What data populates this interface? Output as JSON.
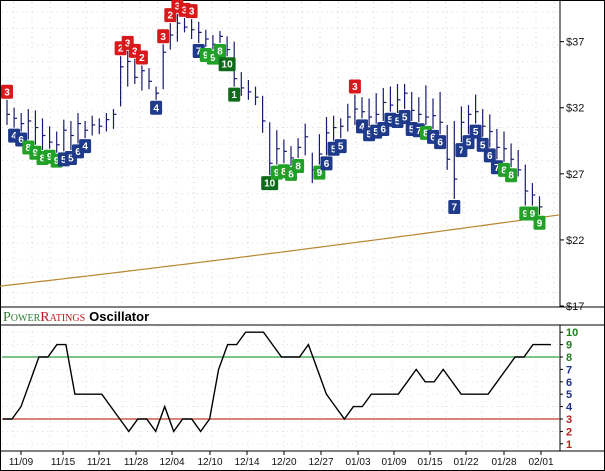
{
  "brand": {
    "power_initial": "P",
    "power_rest": "OWER",
    "ratings_initial": "R",
    "ratings_rest": "ATINGS",
    "oscillator_label": "Oscillator",
    "colors": {
      "power": "#2e7d32",
      "ratings": "#b71c1c"
    }
  },
  "chart_data": [
    {
      "type": "ohlc",
      "name": "price",
      "y_ticks": [
        "$37",
        "$32",
        "$27",
        "$22",
        "$17"
      ],
      "y_tick_values": [
        37,
        32,
        27,
        22,
        17
      ],
      "ylim": [
        17,
        40
      ],
      "grid": "dotted",
      "x_ticks": [
        "11/09",
        "11/15",
        "11/21",
        "11/28",
        "12/04",
        "12/10",
        "12/14",
        "12/20",
        "12/27",
        "01/03",
        "01/09",
        "01/15",
        "01/22",
        "01/28",
        "02/01"
      ],
      "bars": [
        {
          "hi": 32.6,
          "lo": 30.7,
          "cl": 31.5
        },
        {
          "hi": 32.0,
          "lo": 30.5,
          "cl": 31.2
        },
        {
          "hi": 31.6,
          "lo": 30.2,
          "cl": 30.8
        },
        {
          "hi": 31.9,
          "lo": 29.6,
          "cl": 31.0
        },
        {
          "hi": 31.8,
          "lo": 29.2,
          "cl": 30.5
        },
        {
          "hi": 31.2,
          "lo": 28.8,
          "cl": 29.9
        },
        {
          "hi": 30.6,
          "lo": 28.9,
          "cl": 29.4
        },
        {
          "hi": 30.2,
          "lo": 28.6,
          "cl": 29.2
        },
        {
          "hi": 31.1,
          "lo": 28.7,
          "cl": 30.3
        },
        {
          "hi": 31.0,
          "lo": 28.8,
          "cl": 29.9
        },
        {
          "hi": 31.6,
          "lo": 29.3,
          "cl": 30.8
        },
        {
          "hi": 31.0,
          "lo": 29.7,
          "cl": 30.3
        },
        {
          "hi": 31.4,
          "lo": 29.9,
          "cl": 30.7
        },
        {
          "hi": 31.2,
          "lo": 30.0,
          "cl": 30.6
        },
        {
          "hi": 31.6,
          "lo": 30.2,
          "cl": 31.1
        },
        {
          "hi": 31.9,
          "lo": 30.4,
          "cl": 31.5
        },
        {
          "hi": 35.9,
          "lo": 32.1,
          "cl": 35.1
        },
        {
          "hi": 36.3,
          "lo": 33.6,
          "cl": 35.5
        },
        {
          "hi": 35.7,
          "lo": 33.8,
          "cl": 34.3
        },
        {
          "hi": 35.2,
          "lo": 33.3,
          "cl": 34.8
        },
        {
          "hi": 35.0,
          "lo": 33.4,
          "cl": 34.0
        },
        {
          "hi": 33.6,
          "lo": 32.6,
          "cl": 33.1
        },
        {
          "hi": 36.8,
          "lo": 33.4,
          "cl": 36.2
        },
        {
          "hi": 38.4,
          "lo": 36.4,
          "cl": 37.5
        },
        {
          "hi": 39.1,
          "lo": 37.0,
          "cl": 38.4
        },
        {
          "hi": 38.8,
          "lo": 37.7,
          "cl": 38.1
        },
        {
          "hi": 38.7,
          "lo": 37.2,
          "cl": 37.9
        },
        {
          "hi": 38.5,
          "lo": 36.9,
          "cl": 37.7
        },
        {
          "hi": 37.9,
          "lo": 36.6,
          "cl": 37.2
        },
        {
          "hi": 37.5,
          "lo": 36.4,
          "cl": 36.8
        },
        {
          "hi": 37.8,
          "lo": 36.9,
          "cl": 37.4
        },
        {
          "hi": 37.4,
          "lo": 35.9,
          "cl": 36.4
        },
        {
          "hi": 37.0,
          "lo": 33.6,
          "cl": 34.2
        },
        {
          "hi": 34.7,
          "lo": 32.9,
          "cl": 33.5
        },
        {
          "hi": 34.1,
          "lo": 32.6,
          "cl": 33.2
        },
        {
          "hi": 33.6,
          "lo": 32.2,
          "cl": 32.8
        },
        {
          "hi": 32.9,
          "lo": 30.1,
          "cl": 31.0
        },
        {
          "hi": 30.9,
          "lo": 26.9,
          "cl": 27.8
        },
        {
          "hi": 30.3,
          "lo": 27.7,
          "cl": 28.9
        },
        {
          "hi": 29.6,
          "lo": 27.8,
          "cl": 28.7
        },
        {
          "hi": 29.1,
          "lo": 27.6,
          "cl": 28.2
        },
        {
          "hi": 29.7,
          "lo": 28.2,
          "cl": 29.0
        },
        {
          "hi": 30.8,
          "lo": 28.4,
          "cl": 29.8
        },
        {
          "hi": 28.6,
          "lo": 26.3,
          "cl": 27.3
        },
        {
          "hi": 30.0,
          "lo": 27.7,
          "cl": 28.5
        },
        {
          "hi": 31.3,
          "lo": 28.4,
          "cl": 30.1
        },
        {
          "hi": 31.4,
          "lo": 29.5,
          "cl": 30.5
        },
        {
          "hi": 31.2,
          "lo": 29.7,
          "cl": 30.6
        },
        {
          "hi": 32.3,
          "lo": 30.2,
          "cl": 31.3
        },
        {
          "hi": 33.0,
          "lo": 30.7,
          "cl": 31.9
        },
        {
          "hi": 32.8,
          "lo": 31.2,
          "cl": 31.7
        },
        {
          "hi": 32.7,
          "lo": 30.6,
          "cl": 31.3
        },
        {
          "hi": 33.1,
          "lo": 30.8,
          "cl": 31.5
        },
        {
          "hi": 33.5,
          "lo": 31.0,
          "cl": 32.4
        },
        {
          "hi": 33.6,
          "lo": 31.7,
          "cl": 32.2
        },
        {
          "hi": 33.8,
          "lo": 31.6,
          "cl": 32.6
        },
        {
          "hi": 33.8,
          "lo": 31.9,
          "cl": 33.1
        },
        {
          "hi": 33.2,
          "lo": 31.0,
          "cl": 31.8
        },
        {
          "hi": 32.8,
          "lo": 30.9,
          "cl": 31.5
        },
        {
          "hi": 33.7,
          "lo": 30.7,
          "cl": 31.3
        },
        {
          "hi": 32.7,
          "lo": 30.4,
          "cl": 31.4
        },
        {
          "hi": 33.2,
          "lo": 30.0,
          "cl": 30.9
        },
        {
          "hi": 30.7,
          "lo": 27.3,
          "cl": 28.1
        },
        {
          "hi": 31.0,
          "lo": 25.1,
          "cl": 26.6
        },
        {
          "hi": 32.1,
          "lo": 29.4,
          "cl": 30.9
        },
        {
          "hi": 32.2,
          "lo": 30.0,
          "cl": 31.5
        },
        {
          "hi": 33.0,
          "lo": 30.8,
          "cl": 31.7
        },
        {
          "hi": 31.9,
          "lo": 29.8,
          "cl": 30.6
        },
        {
          "hi": 31.5,
          "lo": 29.0,
          "cl": 30.2
        },
        {
          "hi": 30.4,
          "lo": 28.1,
          "cl": 29.0
        },
        {
          "hi": 30.2,
          "lo": 27.9,
          "cl": 28.9
        },
        {
          "hi": 29.3,
          "lo": 27.5,
          "cl": 28.1
        },
        {
          "hi": 28.8,
          "lo": 26.8,
          "cl": 27.3
        },
        {
          "hi": 27.7,
          "lo": 24.6,
          "cl": 25.7
        },
        {
          "hi": 26.3,
          "lo": 24.6,
          "cl": 25.4
        },
        {
          "hi": 25.3,
          "lo": 23.9,
          "cl": 24.5
        }
      ],
      "moving_average": {
        "color": "#b8862e",
        "start": 18.5,
        "end": 23.9
      },
      "ratings": [
        {
          "i": 0,
          "v": "3",
          "pos": "above"
        },
        {
          "i": 1,
          "v": "4",
          "pos": "below"
        },
        {
          "i": 2,
          "v": "6",
          "pos": "below"
        },
        {
          "i": 3,
          "v": "8",
          "pos": "below"
        },
        {
          "i": 4,
          "v": "9",
          "pos": "below"
        },
        {
          "i": 5,
          "v": "8",
          "pos": "below"
        },
        {
          "i": 6,
          "v": "9",
          "pos": "below"
        },
        {
          "i": 7,
          "v": "9",
          "pos": "below"
        },
        {
          "i": 8,
          "v": "5",
          "pos": "below"
        },
        {
          "i": 9,
          "v": "5",
          "pos": "below"
        },
        {
          "i": 10,
          "v": "6",
          "pos": "below"
        },
        {
          "i": 11,
          "v": "4",
          "pos": "below"
        },
        {
          "i": 16,
          "v": "2",
          "pos": "above"
        },
        {
          "i": 17,
          "v": "3",
          "pos": "above"
        },
        {
          "i": 18,
          "v": "3",
          "pos": "above"
        },
        {
          "i": 19,
          "v": "2",
          "pos": "above"
        },
        {
          "i": 21,
          "v": "4",
          "pos": "below"
        },
        {
          "i": 22,
          "v": "3",
          "pos": "above"
        },
        {
          "i": 23,
          "v": "2",
          "pos": "above"
        },
        {
          "i": 24,
          "v": "3",
          "pos": "above"
        },
        {
          "i": 25,
          "v": "3",
          "pos": "above"
        },
        {
          "i": 26,
          "v": "3",
          "pos": "above"
        },
        {
          "i": 27,
          "v": "7",
          "pos": "below"
        },
        {
          "i": 28,
          "v": "9",
          "pos": "below"
        },
        {
          "i": 29,
          "v": "9",
          "pos": "below"
        },
        {
          "i": 30,
          "v": "8",
          "pos": "below"
        },
        {
          "i": 31,
          "v": "10",
          "pos": "below"
        },
        {
          "i": 32,
          "v": "1",
          "pos": "below"
        },
        {
          "i": 37,
          "v": "10",
          "pos": "below"
        },
        {
          "i": 38,
          "v": "9",
          "pos": "below"
        },
        {
          "i": 39,
          "v": "8",
          "pos": "below"
        },
        {
          "i": 40,
          "v": "8",
          "pos": "below"
        },
        {
          "i": 41,
          "v": "8",
          "pos": "below"
        },
        {
          "i": 44,
          "v": "9",
          "pos": "below"
        },
        {
          "i": 45,
          "v": "6",
          "pos": "below"
        },
        {
          "i": 46,
          "v": "5",
          "pos": "below"
        },
        {
          "i": 47,
          "v": "5",
          "pos": "below"
        },
        {
          "i": 49,
          "v": "3",
          "pos": "above"
        },
        {
          "i": 50,
          "v": "4",
          "pos": "below"
        },
        {
          "i": 51,
          "v": "5",
          "pos": "below"
        },
        {
          "i": 52,
          "v": "5",
          "pos": "below"
        },
        {
          "i": 53,
          "v": "6",
          "pos": "below"
        },
        {
          "i": 54,
          "v": "5",
          "pos": "below"
        },
        {
          "i": 55,
          "v": "5",
          "pos": "below"
        },
        {
          "i": 56,
          "v": "5",
          "pos": "below"
        },
        {
          "i": 57,
          "v": "5",
          "pos": "below"
        },
        {
          "i": 58,
          "v": "7",
          "pos": "below"
        },
        {
          "i": 59,
          "v": "8",
          "pos": "below"
        },
        {
          "i": 60,
          "v": "6",
          "pos": "below"
        },
        {
          "i": 61,
          "v": "6",
          "pos": "below"
        },
        {
          "i": 63,
          "v": "7",
          "pos": "below"
        },
        {
          "i": 64,
          "v": "7",
          "pos": "below"
        },
        {
          "i": 65,
          "v": "5",
          "pos": "below"
        },
        {
          "i": 66,
          "v": "5",
          "pos": "below"
        },
        {
          "i": 67,
          "v": "5",
          "pos": "below"
        },
        {
          "i": 68,
          "v": "6",
          "pos": "below"
        },
        {
          "i": 69,
          "v": "7",
          "pos": "below"
        },
        {
          "i": 70,
          "v": "8",
          "pos": "below"
        },
        {
          "i": 71,
          "v": "8",
          "pos": "below"
        },
        {
          "i": 73,
          "v": "9",
          "pos": "below"
        },
        {
          "i": 74,
          "v": "9",
          "pos": "below"
        },
        {
          "i": 75,
          "v": "9",
          "pos": "below"
        }
      ],
      "rating_colors": {
        "low": "#d7191c",
        "mid": "#1f3a8a",
        "high": "#21a127",
        "top": "#0f6b1a"
      }
    },
    {
      "type": "line",
      "name": "PowerRatings Oscillator",
      "ylim": [
        0.5,
        10.5
      ],
      "y_ticks": [
        "10",
        "9",
        "8",
        "7",
        "6",
        "5",
        "4",
        "3",
        "2",
        "1"
      ],
      "y_tick_values": [
        10,
        9,
        8,
        7,
        6,
        5,
        4,
        3,
        2,
        1
      ],
      "reference_lines": [
        {
          "value": 8,
          "color": "#2ea043"
        },
        {
          "value": 3,
          "color": "#c0392b"
        }
      ],
      "values": [
        3,
        3,
        4,
        6,
        8,
        8,
        9,
        9,
        5,
        5,
        5,
        5,
        4,
        3,
        2,
        3,
        3,
        2,
        4,
        2,
        3,
        3,
        2,
        3,
        7,
        9,
        9,
        10,
        10,
        10,
        9,
        8,
        8,
        8,
        9,
        7,
        5,
        4,
        3,
        4,
        4,
        5,
        5,
        5,
        5,
        6,
        7,
        6,
        6,
        7,
        6,
        5,
        5,
        5,
        5,
        6,
        7,
        8,
        8,
        9,
        9,
        9
      ]
    }
  ]
}
